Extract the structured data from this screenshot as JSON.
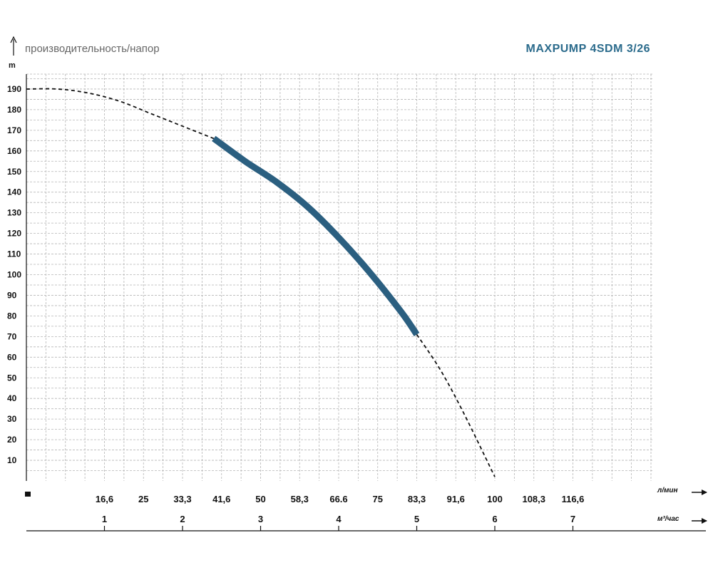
{
  "header": {
    "ylabel": "производительность/напор",
    "ylabel_unit": "m",
    "title": "MAXPUMP 4SDM 3/26"
  },
  "axes": {
    "lpm_unit": "л/мин",
    "m3_unit": "м³/час"
  },
  "colors": {
    "curve": "#2b5f80",
    "title": "#2b6b8c",
    "grid": "#b5b5b5"
  },
  "chart_data": {
    "type": "line",
    "title": "MAXPUMP 4SDM 3/26",
    "xlabel": "м³/час",
    "ylabel": "m",
    "xlim": [
      0,
      7.8
    ],
    "ylim": [
      0,
      195
    ],
    "y_ticks": [
      10,
      20,
      30,
      40,
      50,
      60,
      70,
      80,
      90,
      100,
      110,
      120,
      130,
      140,
      150,
      160,
      170,
      180,
      190
    ],
    "x_ticks_m3h": [
      {
        "value": 1,
        "label": "1"
      },
      {
        "value": 2,
        "label": "2"
      },
      {
        "value": 3,
        "label": "3"
      },
      {
        "value": 4,
        "label": "4"
      },
      {
        "value": 5,
        "label": "5"
      },
      {
        "value": 6,
        "label": "6"
      },
      {
        "value": 7,
        "label": "7"
      }
    ],
    "x_ticks_lpm": [
      {
        "value": 1.0,
        "label": "16,6"
      },
      {
        "value": 1.5,
        "label": "25"
      },
      {
        "value": 2.0,
        "label": "33,3"
      },
      {
        "value": 2.5,
        "label": "41,6"
      },
      {
        "value": 3.0,
        "label": "50"
      },
      {
        "value": 3.5,
        "label": "58,3"
      },
      {
        "value": 4.0,
        "label": "66.6"
      },
      {
        "value": 4.5,
        "label": "75"
      },
      {
        "value": 5.0,
        "label": "83,3"
      },
      {
        "value": 5.5,
        "label": "91,6"
      },
      {
        "value": 6.0,
        "label": "100"
      },
      {
        "value": 6.5,
        "label": "108,3"
      },
      {
        "value": 7.0,
        "label": "116,6"
      }
    ],
    "series": [
      {
        "style": "dashed",
        "x": [
          0,
          0.4,
          0.8,
          1.2,
          1.6,
          2.0,
          2.4
        ],
        "y": [
          190,
          190,
          188,
          184,
          178,
          172,
          166
        ]
      },
      {
        "style": "solid",
        "x": [
          2.4,
          2.8,
          3.2,
          3.6,
          4.0,
          4.4,
          4.8,
          5.0
        ],
        "y": [
          166,
          155,
          145,
          133,
          118,
          101,
          82,
          71
        ]
      },
      {
        "style": "dashed",
        "x": [
          5.0,
          5.3,
          5.6,
          6.0
        ],
        "y": [
          71,
          54,
          33,
          2
        ]
      }
    ],
    "grid": true
  }
}
